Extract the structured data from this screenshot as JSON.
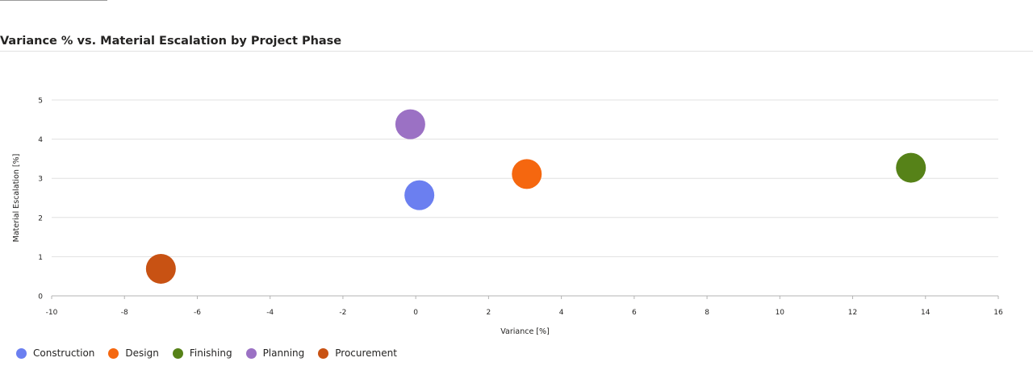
{
  "chart_data": {
    "type": "scatter",
    "title": "Variance % vs. Material Escalation by Project Phase",
    "xlabel": "Variance [%]",
    "ylabel": "Material Escalation [%]",
    "xlim": [
      -10,
      16
    ],
    "ylim": [
      0,
      5
    ],
    "xticks": [
      -10,
      -8,
      -6,
      -4,
      -2,
      0,
      2,
      4,
      6,
      8,
      10,
      12,
      14,
      16
    ],
    "yticks": [
      0,
      1,
      2,
      3,
      4,
      5
    ],
    "xtick_labels": [
      "-10",
      "-8",
      "-6",
      "-4",
      "-2",
      "0",
      "2",
      "4",
      "6",
      "8",
      "10",
      "12",
      "14",
      "16"
    ],
    "ytick_labels": [
      "0",
      "1",
      "2",
      "3",
      "4",
      "5"
    ],
    "grid": "horizontal",
    "legend_position": "bottom-left",
    "series": [
      {
        "name": "Construction",
        "color": "#6B7FF0",
        "points": [
          {
            "x": 0.1,
            "y": 2.57
          }
        ]
      },
      {
        "name": "Design",
        "color": "#F5670F",
        "points": [
          {
            "x": 3.05,
            "y": 3.11
          }
        ]
      },
      {
        "name": "Finishing",
        "color": "#568218",
        "points": [
          {
            "x": 13.6,
            "y": 3.27
          }
        ]
      },
      {
        "name": "Planning",
        "color": "#9B71C4",
        "points": [
          {
            "x": -0.15,
            "y": 4.38
          }
        ]
      },
      {
        "name": "Procurement",
        "color": "#C85213",
        "points": [
          {
            "x": -7.0,
            "y": 0.69
          }
        ]
      }
    ]
  }
}
